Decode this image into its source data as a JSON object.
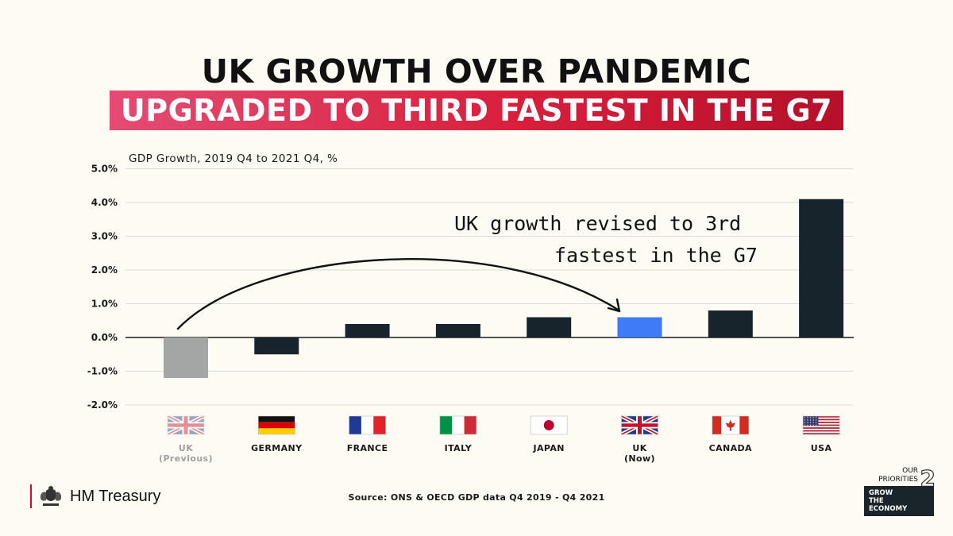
{
  "header": {
    "title_line1": "UK GROWTH OVER PANDEMIC",
    "title_line2": "UPGRADED TO THIRD FASTEST IN THE G7"
  },
  "chart_data": {
    "type": "bar",
    "ylabel": "GDP Growth, 2019 Q4 to 2021 Q4, %",
    "ylim": [
      -2.0,
      5.0
    ],
    "yticks": [
      "5.0%",
      "4.0%",
      "3.0%",
      "2.0%",
      "1.0%",
      "0.0%",
      "-1.0%",
      "-2.0%"
    ],
    "ytick_values": [
      5,
      4,
      3,
      2,
      1,
      0,
      -1,
      -2
    ],
    "grid": true,
    "categories": [
      {
        "label": "UK",
        "sub": "(Previous)",
        "flag": "uk-flag",
        "muted": true
      },
      {
        "label": "GERMANY",
        "sub": "",
        "flag": "germany-flag",
        "muted": false
      },
      {
        "label": "FRANCE",
        "sub": "",
        "flag": "france-flag",
        "muted": false
      },
      {
        "label": "ITALY",
        "sub": "",
        "flag": "italy-flag",
        "muted": false
      },
      {
        "label": "JAPAN",
        "sub": "",
        "flag": "japan-flag",
        "muted": false
      },
      {
        "label": "UK",
        "sub": "(Now)",
        "flag": "uk-flag",
        "muted": false
      },
      {
        "label": "CANADA",
        "sub": "",
        "flag": "canada-flag",
        "muted": false
      },
      {
        "label": "USA",
        "sub": "",
        "flag": "usa-flag",
        "muted": false
      }
    ],
    "values": [
      -1.2,
      -0.5,
      0.4,
      0.4,
      0.6,
      0.6,
      0.8,
      4.1
    ],
    "colors": [
      "#a4a6a5",
      "#17242b",
      "#17242b",
      "#17242b",
      "#17242b",
      "#3d7bf7",
      "#17242b",
      "#17242b"
    ],
    "annotation": {
      "line1": "UK growth revised to 3rd",
      "line2": "fastest in the G7"
    }
  },
  "footer": {
    "source": "Source: ONS & OECD GDP data Q4 2019 - Q4 2021",
    "logo_text": "HM Treasury",
    "priorities_top": [
      "OUR",
      "PRIORITIES"
    ],
    "priorities_number": "2",
    "priorities_box": [
      "GROW",
      "THE",
      "ECONOMY"
    ]
  }
}
